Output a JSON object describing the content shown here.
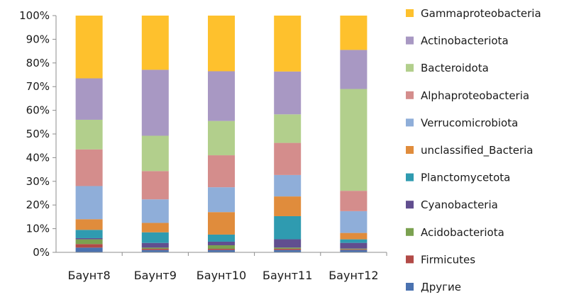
{
  "chart_data": {
    "type": "bar",
    "stacked": true,
    "normalized": true,
    "categories": [
      "Баунт8",
      "Баунт9",
      "Баунт10",
      "Баунт11",
      "Баунт12"
    ],
    "y_ticks": [
      "0%",
      "10%",
      "20%",
      "30%",
      "40%",
      "50%",
      "60%",
      "70%",
      "80%",
      "90%",
      "100%"
    ],
    "ylim": [
      0,
      100
    ],
    "grid": false,
    "legend_position": "right",
    "series": [
      {
        "name": "Другие",
        "color": "#4a72b0",
        "values": [
          2.0,
          1.0,
          1.0,
          1.0,
          1.0
        ]
      },
      {
        "name": "Firmicutes",
        "color": "#b24a47",
        "values": [
          1.5,
          0.5,
          0.5,
          0.5,
          0.3
        ]
      },
      {
        "name": "Acidobacteriota",
        "color": "#7ba150",
        "values": [
          2.0,
          0.5,
          1.5,
          0.5,
          0.3
        ]
      },
      {
        "name": "Cyanobacteria",
        "color": "#614e8f",
        "values": [
          0.5,
          2.0,
          1.5,
          3.5,
          2.4
        ]
      },
      {
        "name": "Planctomycetota",
        "color": "#2f9bb0",
        "values": [
          3.5,
          4.5,
          3.0,
          9.7,
          1.5
        ]
      },
      {
        "name": "unclassified_Bacteria",
        "color": "#e08c3c",
        "values": [
          4.5,
          4.0,
          9.5,
          8.3,
          2.7
        ]
      },
      {
        "name": "Verrucomicrobiota",
        "color": "#8faed9",
        "values": [
          14.0,
          10.0,
          10.5,
          9.0,
          9.2
        ]
      },
      {
        "name": "Alphaproteobacteria",
        "color": "#d48d8c",
        "values": [
          15.5,
          12.0,
          13.5,
          13.5,
          8.6
        ]
      },
      {
        "name": "Bacteroidota",
        "color": "#b2cf8c",
        "values": [
          12.5,
          15.0,
          14.5,
          12.0,
          43.0
        ]
      },
      {
        "name": "Actinobacteriota",
        "color": "#a898c3",
        "values": [
          17.5,
          28.0,
          21.0,
          18.0,
          16.5
        ]
      },
      {
        "name": "Gammaproteobacteria",
        "color": "#fec12d",
        "values": [
          26.5,
          23.0,
          23.5,
          23.5,
          14.5
        ]
      }
    ]
  }
}
